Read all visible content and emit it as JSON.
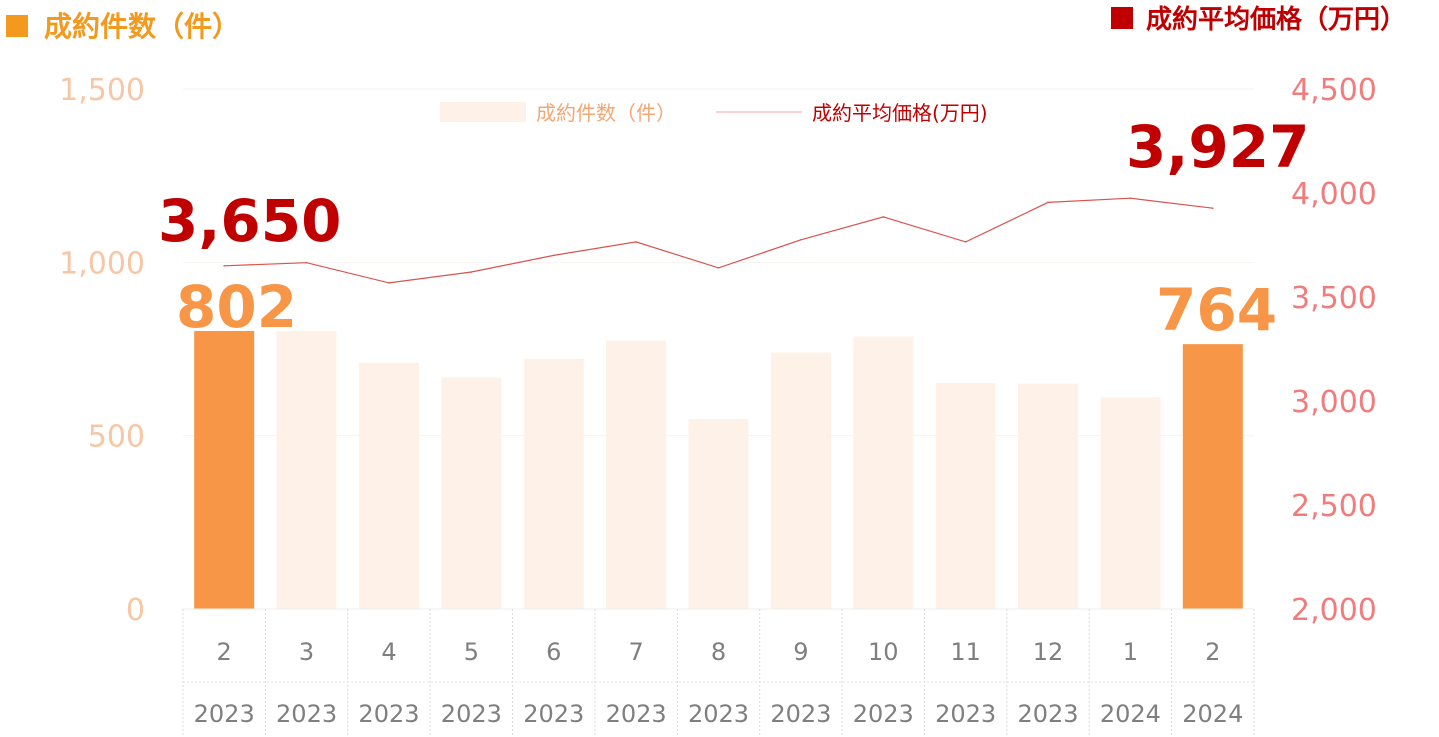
{
  "title_left": "成約件数（件）",
  "title_right": "成約平均価格（万円）",
  "legend": {
    "bar_label": "成約件数（件）",
    "line_label": "成約平均価格(万円)"
  },
  "colors": {
    "bar_highlight": "#F79646",
    "bar_normal": "#FDF1E8",
    "line": "#D9534F",
    "title_left": "#F39A1E",
    "title_right": "#C00000",
    "big_line_label": "#C00000",
    "big_bar_label": "#F79646"
  },
  "chart_data": {
    "type": "bar",
    "categories": [
      "2",
      "3",
      "4",
      "5",
      "6",
      "7",
      "8",
      "9",
      "10",
      "11",
      "12",
      "1",
      "2"
    ],
    "years": [
      "2023",
      "2023",
      "2023",
      "2023",
      "2023",
      "2023",
      "2023",
      "2023",
      "2023",
      "2023",
      "2023",
      "2024",
      "2024"
    ],
    "series": [
      {
        "name": "成約件数（件）",
        "axis": "left",
        "type": "bar",
        "values": [
          802,
          802,
          710,
          668,
          722,
          774,
          548,
          740,
          786,
          652,
          650,
          610,
          764
        ],
        "highlight": [
          0,
          12
        ]
      },
      {
        "name": "成約平均価格(万円)",
        "axis": "right",
        "type": "line",
        "values": [
          3650,
          3665,
          3568,
          3620,
          3700,
          3765,
          3640,
          3775,
          3885,
          3765,
          3955,
          3975,
          3927
        ]
      }
    ],
    "y_left": {
      "min": 0,
      "max": 1500,
      "ticks": [
        0,
        500,
        1000,
        1500
      ],
      "tick_labels": [
        "0",
        "500",
        "1,000",
        "1,500"
      ]
    },
    "y_right": {
      "min": 2000,
      "max": 4500,
      "ticks": [
        2000,
        2500,
        3000,
        3500,
        4000,
        4500
      ],
      "tick_labels": [
        "2,000",
        "2,500",
        "3,000",
        "3,500",
        "4,000",
        "4,500"
      ]
    },
    "data_labels": {
      "line_first": "3,650",
      "line_last": "3,927",
      "bar_first": "802",
      "bar_last": "764"
    },
    "grid": true,
    "legend_position": "top-center"
  }
}
